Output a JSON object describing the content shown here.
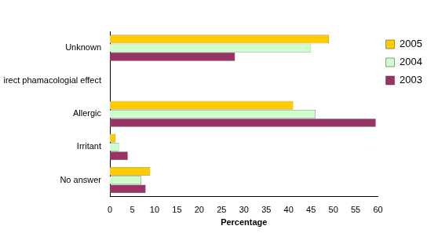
{
  "chart_data": {
    "type": "bar",
    "orientation": "horizontal",
    "categories": [
      "Unknown",
      "Direct phamacologial effect",
      "Allergic",
      "Irritant",
      "No answer"
    ],
    "series": [
      {
        "name": "2005",
        "color": "#ffcc00",
        "values": [
          49,
          0,
          41,
          1.2,
          9
        ]
      },
      {
        "name": "2004",
        "color": "#ccffcc",
        "values": [
          45,
          0,
          46,
          2,
          7
        ]
      },
      {
        "name": "2003",
        "color": "#993366",
        "values": [
          28,
          0,
          59.5,
          4,
          8
        ]
      }
    ],
    "x_label": "Percentage",
    "xlim": [
      0,
      60
    ],
    "xticks": [
      0,
      5,
      10,
      15,
      20,
      25,
      30,
      35,
      40,
      45,
      50,
      55,
      60
    ],
    "grid": false,
    "legend": "right"
  }
}
